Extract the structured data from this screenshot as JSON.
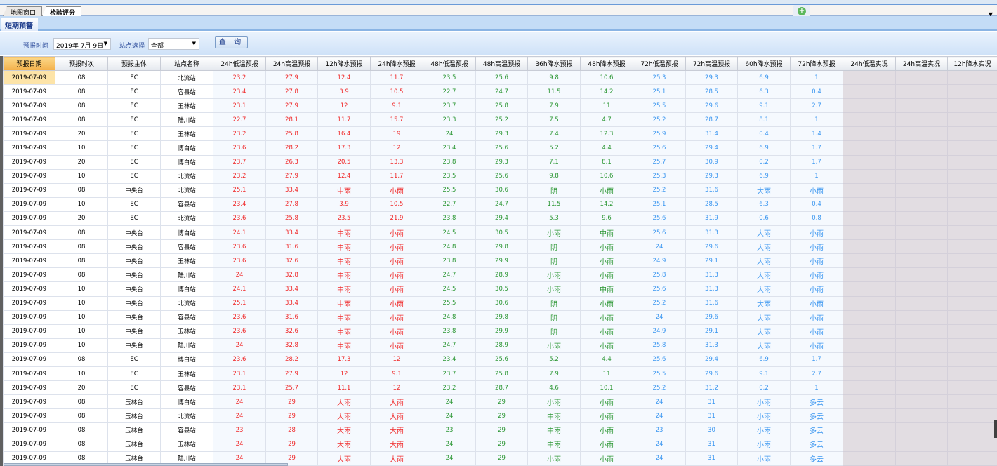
{
  "tabs": [
    {
      "label": "地图窗口",
      "active": false
    },
    {
      "label": "检验评分",
      "active": true
    }
  ],
  "subtab": "短期预警",
  "filter": {
    "time_label": "预报时间",
    "time_value": "2019年 7月 9日",
    "station_label": "站点选择",
    "station_value": "全部",
    "query_label": "查 询"
  },
  "icons": {
    "add": "plus-circle-icon",
    "dropdown": "caret-down-icon"
  },
  "colors": {
    "forecast_24h": "#f02828",
    "forecast_48h": "#2a9632",
    "forecast_72h": "#3a96f0",
    "actual_empty": "#e2dde2",
    "selected_header": "#f3b04a"
  },
  "columns": [
    "预报日期",
    "预报时次",
    "预报主体",
    "站点名称",
    "24h低温预报",
    "24h高温预报",
    "12h降水预报",
    "24h降水预报",
    "48h低温预报",
    "48h高温预报",
    "36h降水预报",
    "48h降水预报",
    "72h低温预报",
    "72h高温预报",
    "60h降水预报",
    "72h降水预报",
    "24h低温实况",
    "24h高温实况",
    "12h降水实况"
  ],
  "rows": [
    [
      "2019-07-09",
      "08",
      "EC",
      "北流站",
      "23.2",
      "27.9",
      "12.4",
      "11.7",
      "23.5",
      "25.6",
      "9.8",
      "10.6",
      "25.3",
      "29.3",
      "6.9",
      "1",
      "",
      "",
      ""
    ],
    [
      "2019-07-09",
      "08",
      "EC",
      "容县站",
      "23.4",
      "27.8",
      "3.9",
      "10.5",
      "22.7",
      "24.7",
      "11.5",
      "14.2",
      "25.1",
      "28.5",
      "6.3",
      "0.4",
      "",
      "",
      ""
    ],
    [
      "2019-07-09",
      "08",
      "EC",
      "玉林站",
      "23.1",
      "27.9",
      "12",
      "9.1",
      "23.7",
      "25.8",
      "7.9",
      "11",
      "25.5",
      "29.6",
      "9.1",
      "2.7",
      "",
      "",
      ""
    ],
    [
      "2019-07-09",
      "08",
      "EC",
      "陆川站",
      "22.7",
      "28.1",
      "11.7",
      "15.7",
      "23.3",
      "25.2",
      "7.5",
      "4.7",
      "25.2",
      "28.7",
      "8.1",
      "1",
      "",
      "",
      ""
    ],
    [
      "2019-07-09",
      "20",
      "EC",
      "玉林站",
      "23.2",
      "25.8",
      "16.4",
      "19",
      "24",
      "29.3",
      "7.4",
      "12.3",
      "25.9",
      "31.4",
      "0.4",
      "1.4",
      "",
      "",
      ""
    ],
    [
      "2019-07-09",
      "10",
      "EC",
      "博白站",
      "23.6",
      "28.2",
      "17.3",
      "12",
      "23.4",
      "25.6",
      "5.2",
      "4.4",
      "25.6",
      "29.4",
      "6.9",
      "1.7",
      "",
      "",
      ""
    ],
    [
      "2019-07-09",
      "20",
      "EC",
      "博白站",
      "23.7",
      "26.3",
      "20.5",
      "13.3",
      "23.8",
      "29.3",
      "7.1",
      "8.1",
      "25.7",
      "30.9",
      "0.2",
      "1.7",
      "",
      "",
      ""
    ],
    [
      "2019-07-09",
      "10",
      "EC",
      "北流站",
      "23.2",
      "27.9",
      "12.4",
      "11.7",
      "23.5",
      "25.6",
      "9.8",
      "10.6",
      "25.3",
      "29.3",
      "6.9",
      "1",
      "",
      "",
      ""
    ],
    [
      "2019-07-09",
      "08",
      "中央台",
      "北流站",
      "25.1",
      "33.4",
      "中雨",
      "小雨",
      "25.5",
      "30.6",
      "阴",
      "小雨",
      "25.2",
      "31.6",
      "大雨",
      "小雨",
      "",
      "",
      ""
    ],
    [
      "2019-07-09",
      "10",
      "EC",
      "容县站",
      "23.4",
      "27.8",
      "3.9",
      "10.5",
      "22.7",
      "24.7",
      "11.5",
      "14.2",
      "25.1",
      "28.5",
      "6.3",
      "0.4",
      "",
      "",
      ""
    ],
    [
      "2019-07-09",
      "20",
      "EC",
      "北流站",
      "23.6",
      "25.8",
      "23.5",
      "21.9",
      "23.8",
      "29.4",
      "5.3",
      "9.6",
      "25.6",
      "31.9",
      "0.6",
      "0.8",
      "",
      "",
      ""
    ],
    [
      "2019-07-09",
      "08",
      "中央台",
      "博白站",
      "24.1",
      "33.4",
      "中雨",
      "小雨",
      "24.5",
      "30.5",
      "小雨",
      "中雨",
      "25.6",
      "31.3",
      "大雨",
      "小雨",
      "",
      "",
      ""
    ],
    [
      "2019-07-09",
      "08",
      "中央台",
      "容县站",
      "23.6",
      "31.6",
      "中雨",
      "小雨",
      "24.8",
      "29.8",
      "阴",
      "小雨",
      "24",
      "29.6",
      "大雨",
      "小雨",
      "",
      "",
      ""
    ],
    [
      "2019-07-09",
      "08",
      "中央台",
      "玉林站",
      "23.6",
      "32.6",
      "中雨",
      "小雨",
      "23.8",
      "29.9",
      "阴",
      "小雨",
      "24.9",
      "29.1",
      "大雨",
      "小雨",
      "",
      "",
      ""
    ],
    [
      "2019-07-09",
      "08",
      "中央台",
      "陆川站",
      "24",
      "32.8",
      "中雨",
      "小雨",
      "24.7",
      "28.9",
      "小雨",
      "小雨",
      "25.8",
      "31.3",
      "大雨",
      "小雨",
      "",
      "",
      ""
    ],
    [
      "2019-07-09",
      "10",
      "中央台",
      "博白站",
      "24.1",
      "33.4",
      "中雨",
      "小雨",
      "24.5",
      "30.5",
      "小雨",
      "中雨",
      "25.6",
      "31.3",
      "大雨",
      "小雨",
      "",
      "",
      ""
    ],
    [
      "2019-07-09",
      "10",
      "中央台",
      "北流站",
      "25.1",
      "33.4",
      "中雨",
      "小雨",
      "25.5",
      "30.6",
      "阴",
      "小雨",
      "25.2",
      "31.6",
      "大雨",
      "小雨",
      "",
      "",
      ""
    ],
    [
      "2019-07-09",
      "10",
      "中央台",
      "容县站",
      "23.6",
      "31.6",
      "中雨",
      "小雨",
      "24.8",
      "29.8",
      "阴",
      "小雨",
      "24",
      "29.6",
      "大雨",
      "小雨",
      "",
      "",
      ""
    ],
    [
      "2019-07-09",
      "10",
      "中央台",
      "玉林站",
      "23.6",
      "32.6",
      "中雨",
      "小雨",
      "23.8",
      "29.9",
      "阴",
      "小雨",
      "24.9",
      "29.1",
      "大雨",
      "小雨",
      "",
      "",
      ""
    ],
    [
      "2019-07-09",
      "10",
      "中央台",
      "陆川站",
      "24",
      "32.8",
      "中雨",
      "小雨",
      "24.7",
      "28.9",
      "小雨",
      "小雨",
      "25.8",
      "31.3",
      "大雨",
      "小雨",
      "",
      "",
      ""
    ],
    [
      "2019-07-09",
      "08",
      "EC",
      "博白站",
      "23.6",
      "28.2",
      "17.3",
      "12",
      "23.4",
      "25.6",
      "5.2",
      "4.4",
      "25.6",
      "29.4",
      "6.9",
      "1.7",
      "",
      "",
      ""
    ],
    [
      "2019-07-09",
      "10",
      "EC",
      "玉林站",
      "23.1",
      "27.9",
      "12",
      "9.1",
      "23.7",
      "25.8",
      "7.9",
      "11",
      "25.5",
      "29.6",
      "9.1",
      "2.7",
      "",
      "",
      ""
    ],
    [
      "2019-07-09",
      "20",
      "EC",
      "容县站",
      "23.1",
      "25.7",
      "11.1",
      "12",
      "23.2",
      "28.7",
      "4.6",
      "10.1",
      "25.2",
      "31.2",
      "0.2",
      "1",
      "",
      "",
      ""
    ],
    [
      "2019-07-09",
      "08",
      "玉林台",
      "博白站",
      "24",
      "29",
      "大雨",
      "大雨",
      "24",
      "29",
      "小雨",
      "小雨",
      "24",
      "31",
      "小雨",
      "多云",
      "",
      "",
      ""
    ],
    [
      "2019-07-09",
      "08",
      "玉林台",
      "北流站",
      "24",
      "29",
      "大雨",
      "大雨",
      "24",
      "29",
      "中雨",
      "小雨",
      "24",
      "31",
      "小雨",
      "多云",
      "",
      "",
      ""
    ],
    [
      "2019-07-09",
      "08",
      "玉林台",
      "容县站",
      "23",
      "28",
      "大雨",
      "大雨",
      "23",
      "29",
      "中雨",
      "小雨",
      "23",
      "30",
      "小雨",
      "多云",
      "",
      "",
      ""
    ],
    [
      "2019-07-09",
      "08",
      "玉林台",
      "玉林站",
      "24",
      "29",
      "大雨",
      "大雨",
      "24",
      "29",
      "中雨",
      "小雨",
      "24",
      "31",
      "小雨",
      "多云",
      "",
      "",
      ""
    ],
    [
      "2019-07-09",
      "08",
      "玉林台",
      "陆川站",
      "24",
      "29",
      "大雨",
      "大雨",
      "24",
      "29",
      "小雨",
      "小雨",
      "24",
      "31",
      "小雨",
      "多云",
      "",
      "",
      ""
    ]
  ]
}
